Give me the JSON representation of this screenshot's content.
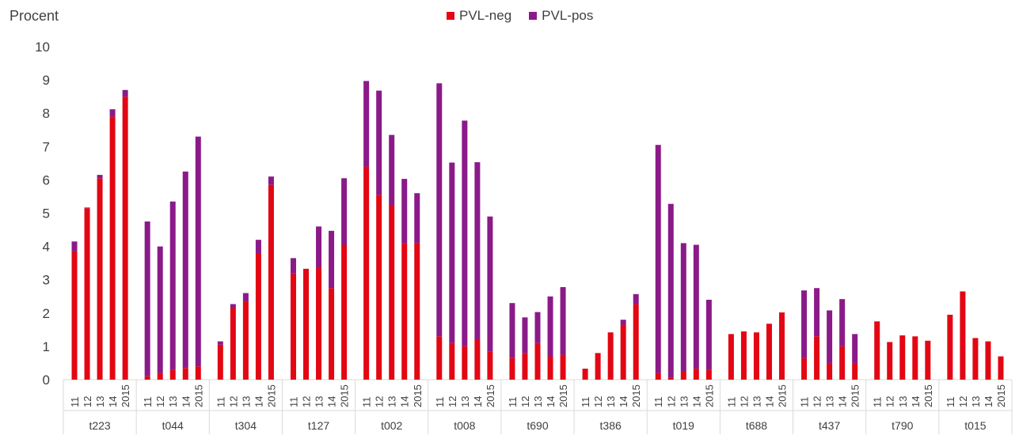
{
  "chart_data": {
    "type": "bar",
    "stacked": true,
    "ylabel": "Procent",
    "ylim": [
      0,
      10
    ],
    "yticks": [
      0,
      1,
      2,
      3,
      4,
      5,
      6,
      7,
      8,
      9,
      10
    ],
    "grid": false,
    "legend_position": "top-center",
    "years": [
      "11",
      "12",
      "13",
      "14",
      "2015"
    ],
    "colors": {
      "PVL-neg": "#e30613",
      "PVL-pos": "#8b1a89"
    },
    "series": [
      {
        "name": "PVL-neg"
      },
      {
        "name": "PVL-pos"
      }
    ],
    "groups": [
      {
        "label": "t223",
        "neg": [
          3.85,
          5.15,
          6.05,
          7.9,
          8.5
        ],
        "total": [
          4.15,
          5.17,
          6.15,
          8.12,
          8.7
        ]
      },
      {
        "label": "t044",
        "neg": [
          0.1,
          0.2,
          0.3,
          0.35,
          0.4
        ],
        "total": [
          4.75,
          4.0,
          5.35,
          6.25,
          7.3
        ]
      },
      {
        "label": "t304",
        "neg": [
          1.05,
          2.15,
          2.35,
          3.8,
          5.85
        ],
        "total": [
          1.15,
          2.27,
          2.6,
          4.2,
          6.1
        ]
      },
      {
        "label": "t127",
        "neg": [
          3.2,
          3.33,
          3.35,
          2.75,
          4.05
        ],
        "total": [
          3.65,
          3.33,
          4.6,
          4.47,
          6.05
        ]
      },
      {
        "label": "t002",
        "neg": [
          6.4,
          5.55,
          5.25,
          4.1,
          4.1
        ],
        "total": [
          8.97,
          8.68,
          7.35,
          6.03,
          5.6
        ]
      },
      {
        "label": "t008",
        "neg": [
          1.3,
          1.1,
          1.0,
          1.2,
          0.85
        ],
        "total": [
          8.9,
          6.52,
          7.78,
          6.53,
          4.9
        ]
      },
      {
        "label": "t690",
        "neg": [
          0.65,
          0.8,
          1.1,
          0.7,
          0.75
        ],
        "total": [
          2.3,
          1.87,
          2.03,
          2.5,
          2.78
        ]
      },
      {
        "label": "t386",
        "neg": [
          0.33,
          0.8,
          1.42,
          1.65,
          2.27
        ],
        "total": [
          0.33,
          0.8,
          1.42,
          1.8,
          2.57
        ]
      },
      {
        "label": "t019",
        "neg": [
          0.2,
          0.05,
          0.25,
          0.33,
          0.3
        ],
        "total": [
          7.05,
          5.28,
          4.1,
          4.05,
          2.4
        ]
      },
      {
        "label": "t688",
        "neg": [
          1.37,
          1.45,
          1.42,
          1.68,
          2.02
        ],
        "total": [
          1.37,
          1.45,
          1.42,
          1.68,
          2.02
        ]
      },
      {
        "label": "t437",
        "neg": [
          0.65,
          1.3,
          0.5,
          1.0,
          0.5
        ],
        "total": [
          2.68,
          2.75,
          2.08,
          2.42,
          1.37
        ]
      },
      {
        "label": "t790",
        "neg": [
          1.75,
          1.13,
          1.33,
          1.3,
          1.17
        ],
        "total": [
          1.75,
          1.13,
          1.33,
          1.3,
          1.17
        ]
      },
      {
        "label": "t015",
        "neg": [
          1.95,
          2.65,
          1.25,
          1.15,
          0.7
        ],
        "total": [
          1.95,
          2.65,
          1.25,
          1.15,
          0.7
        ]
      }
    ]
  }
}
